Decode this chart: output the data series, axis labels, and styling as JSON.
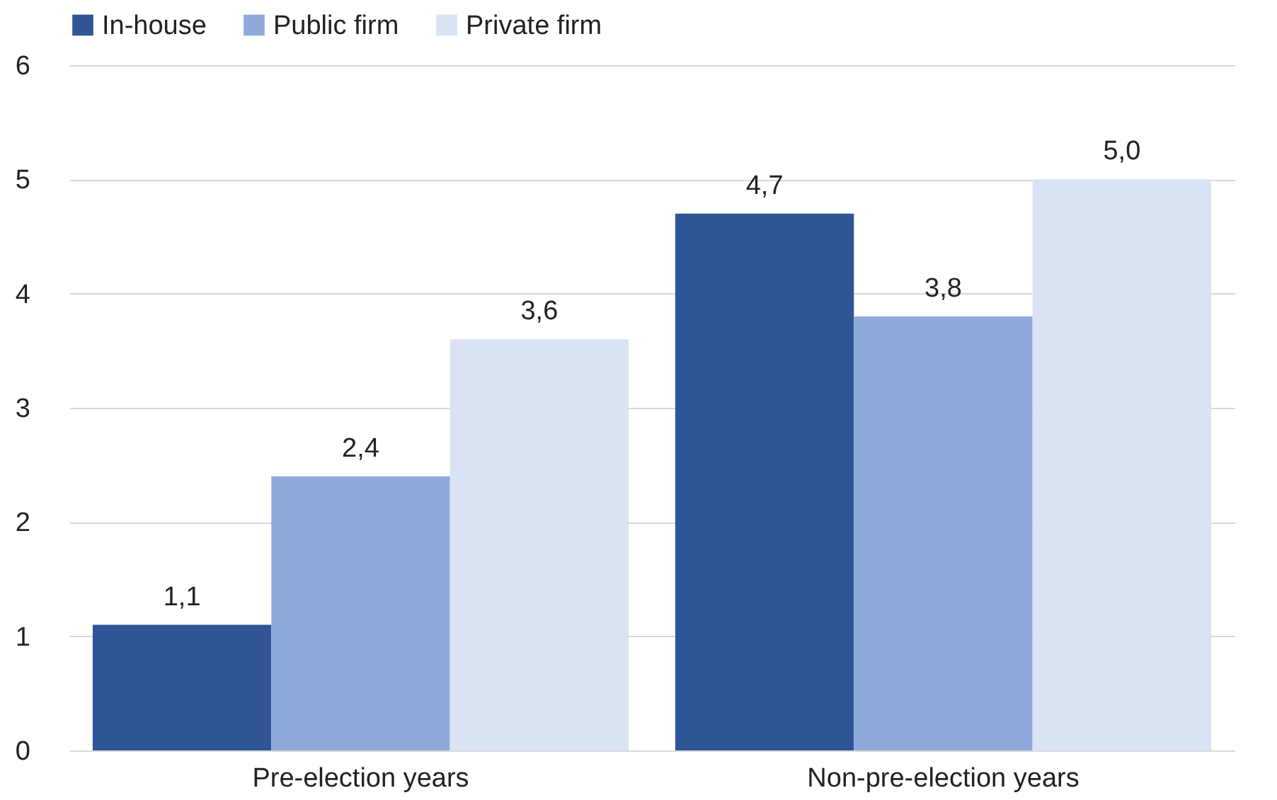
{
  "chart_data": {
    "type": "bar",
    "categories": [
      "Pre-election years",
      "Non-pre-election years"
    ],
    "series": [
      {
        "name": "In-house",
        "color": "#2f5597",
        "values": [
          1.1,
          4.7
        ],
        "value_labels": [
          "1,1",
          "4,7"
        ]
      },
      {
        "name": "Public firm",
        "color": "#8eaadb",
        "values": [
          2.4,
          3.8
        ],
        "value_labels": [
          "2,4",
          "3,8"
        ]
      },
      {
        "name": "Private firm",
        "color": "#dae3f3",
        "values": [
          3.6,
          5.0
        ],
        "value_labels": [
          "3,6",
          "5,0"
        ]
      }
    ],
    "ylim": [
      0,
      6
    ],
    "yticks": [
      0,
      1,
      2,
      3,
      4,
      5,
      6
    ],
    "grid": "y",
    "legend": "top"
  }
}
